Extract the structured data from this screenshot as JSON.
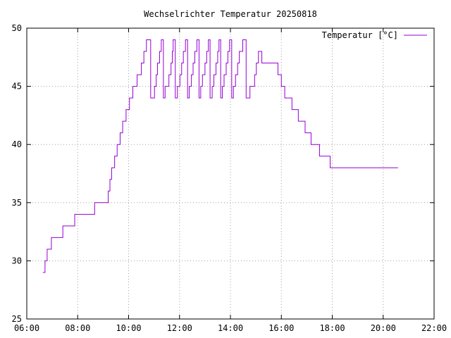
{
  "chart_data": {
    "type": "line",
    "title": "Wechselrichter Temperatur 20250818",
    "xlabel": "",
    "ylabel": "",
    "xlim": [
      "06:00",
      "22:00"
    ],
    "ylim": [
      25,
      50
    ],
    "x_ticks": [
      "06:00",
      "08:00",
      "10:00",
      "12:00",
      "14:00",
      "16:00",
      "18:00",
      "20:00",
      "22:00"
    ],
    "y_ticks": [
      25,
      30,
      35,
      40,
      45,
      50
    ],
    "grid": true,
    "legend_position": "top-right",
    "colors": {
      "series": "#9400d3",
      "grid": "#a0a0a0",
      "axis": "#000000"
    },
    "series": [
      {
        "name": "Temperatur [°C]",
        "step": true,
        "x": [
          "06:38",
          "06:43",
          "06:48",
          "06:58",
          "07:07",
          "07:25",
          "07:53",
          "08:40",
          "09:12",
          "09:16",
          "09:20",
          "09:27",
          "09:33",
          "09:40",
          "09:46",
          "09:54",
          "10:02",
          "10:10",
          "10:20",
          "10:30",
          "10:36",
          "10:42",
          "10:52",
          "11:01",
          "11:05",
          "11:08",
          "11:13",
          "11:17",
          "11:22",
          "11:26",
          "11:35",
          "11:40",
          "11:43",
          "11:45",
          "11:50",
          "11:55",
          "12:01",
          "12:05",
          "12:09",
          "12:14",
          "12:19",
          "12:23",
          "12:28",
          "12:32",
          "12:36",
          "12:41",
          "12:46",
          "12:50",
          "12:54",
          "13:00",
          "13:04",
          "13:08",
          "13:12",
          "13:17",
          "13:21",
          "13:26",
          "13:30",
          "13:33",
          "13:37",
          "13:41",
          "13:45",
          "13:50",
          "13:54",
          "13:58",
          "14:03",
          "14:07",
          "14:12",
          "14:17",
          "14:21",
          "14:29",
          "14:37",
          "14:46",
          "14:57",
          "15:01",
          "15:06",
          "15:14",
          "15:23",
          "15:52",
          "16:00",
          "16:08",
          "16:25",
          "16:40",
          "16:56",
          "17:10",
          "17:30",
          "17:55",
          "18:40",
          "19:30",
          "20:35"
        ],
        "values": [
          29,
          30,
          31,
          32,
          32,
          33,
          34,
          35,
          36,
          37,
          38,
          39,
          40,
          41,
          42,
          43,
          44,
          45,
          46,
          47,
          48,
          49,
          44,
          45,
          46,
          47,
          48,
          49,
          44,
          45,
          46,
          47,
          48,
          49,
          44,
          45,
          46,
          47,
          48,
          49,
          44,
          45,
          46,
          47,
          48,
          49,
          44,
          45,
          46,
          47,
          48,
          49,
          44,
          45,
          46,
          47,
          48,
          49,
          44,
          45,
          46,
          47,
          48,
          49,
          44,
          45,
          46,
          47,
          48,
          49,
          44,
          45,
          46,
          47,
          48,
          47,
          47,
          46,
          45,
          44,
          43,
          42,
          41,
          40,
          39,
          38,
          38,
          38,
          38
        ]
      }
    ]
  }
}
